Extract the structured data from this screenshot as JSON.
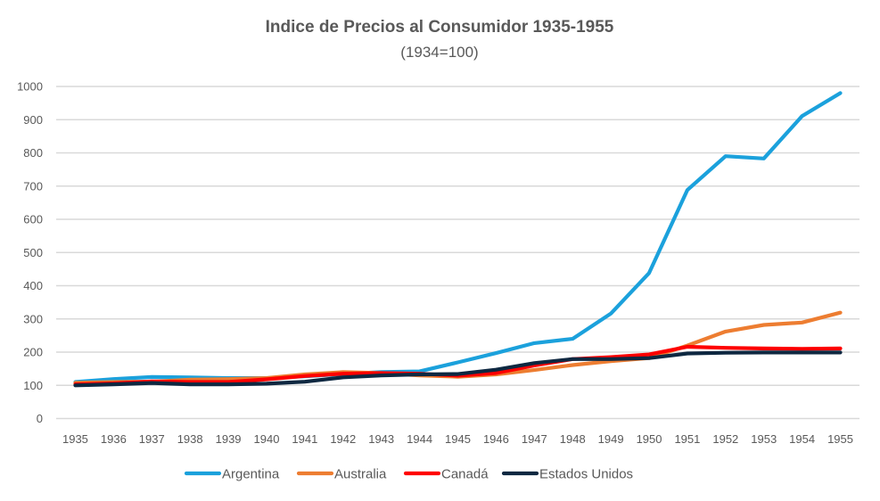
{
  "chart_data": {
    "type": "line",
    "title": "Indice de Precios al Consumidor 1935-1955",
    "subtitle": "(1934=100)",
    "xlabel": "",
    "ylabel": "",
    "ylim": [
      0,
      1000
    ],
    "yticks": [
      0,
      100,
      200,
      300,
      400,
      500,
      600,
      700,
      800,
      900,
      1000
    ],
    "grid": true,
    "legend_position": "bottom",
    "x": [
      "1935",
      "1936",
      "1937",
      "1938",
      "1939",
      "1940",
      "1941",
      "1942",
      "1943",
      "1944",
      "1945",
      "1946",
      "1947",
      "1948",
      "1949",
      "1950",
      "1951",
      "1952",
      "1953",
      "1954",
      "1955"
    ],
    "series": [
      {
        "name": "Argentina",
        "color": "#1BA1DC",
        "values": [
          110,
          119,
          125,
          124,
          122,
          122,
          127,
          134,
          140,
          142,
          169,
          197,
          227,
          240,
          316,
          438,
          688,
          790,
          783,
          911,
          980
        ]
      },
      {
        "name": "Australia",
        "color": "#ED7D31",
        "values": [
          108,
          110,
          111,
          117,
          119,
          122,
          133,
          140,
          137,
          130,
          126,
          133,
          146,
          161,
          173,
          182,
          220,
          262,
          282,
          289,
          319
        ]
      },
      {
        "name": "Canadá",
        "color": "#FF0000",
        "values": [
          103,
          106,
          112,
          110,
          110,
          118,
          128,
          135,
          137,
          135,
          129,
          137,
          160,
          179,
          185,
          193,
          216,
          213,
          211,
          210,
          211
        ]
      },
      {
        "name": "Estados Unidos",
        "color": "#0E2841",
        "values": [
          100,
          103,
          107,
          103,
          103,
          105,
          111,
          124,
          130,
          133,
          134,
          147,
          167,
          179,
          179,
          182,
          196,
          198,
          199,
          199,
          199
        ]
      }
    ]
  }
}
